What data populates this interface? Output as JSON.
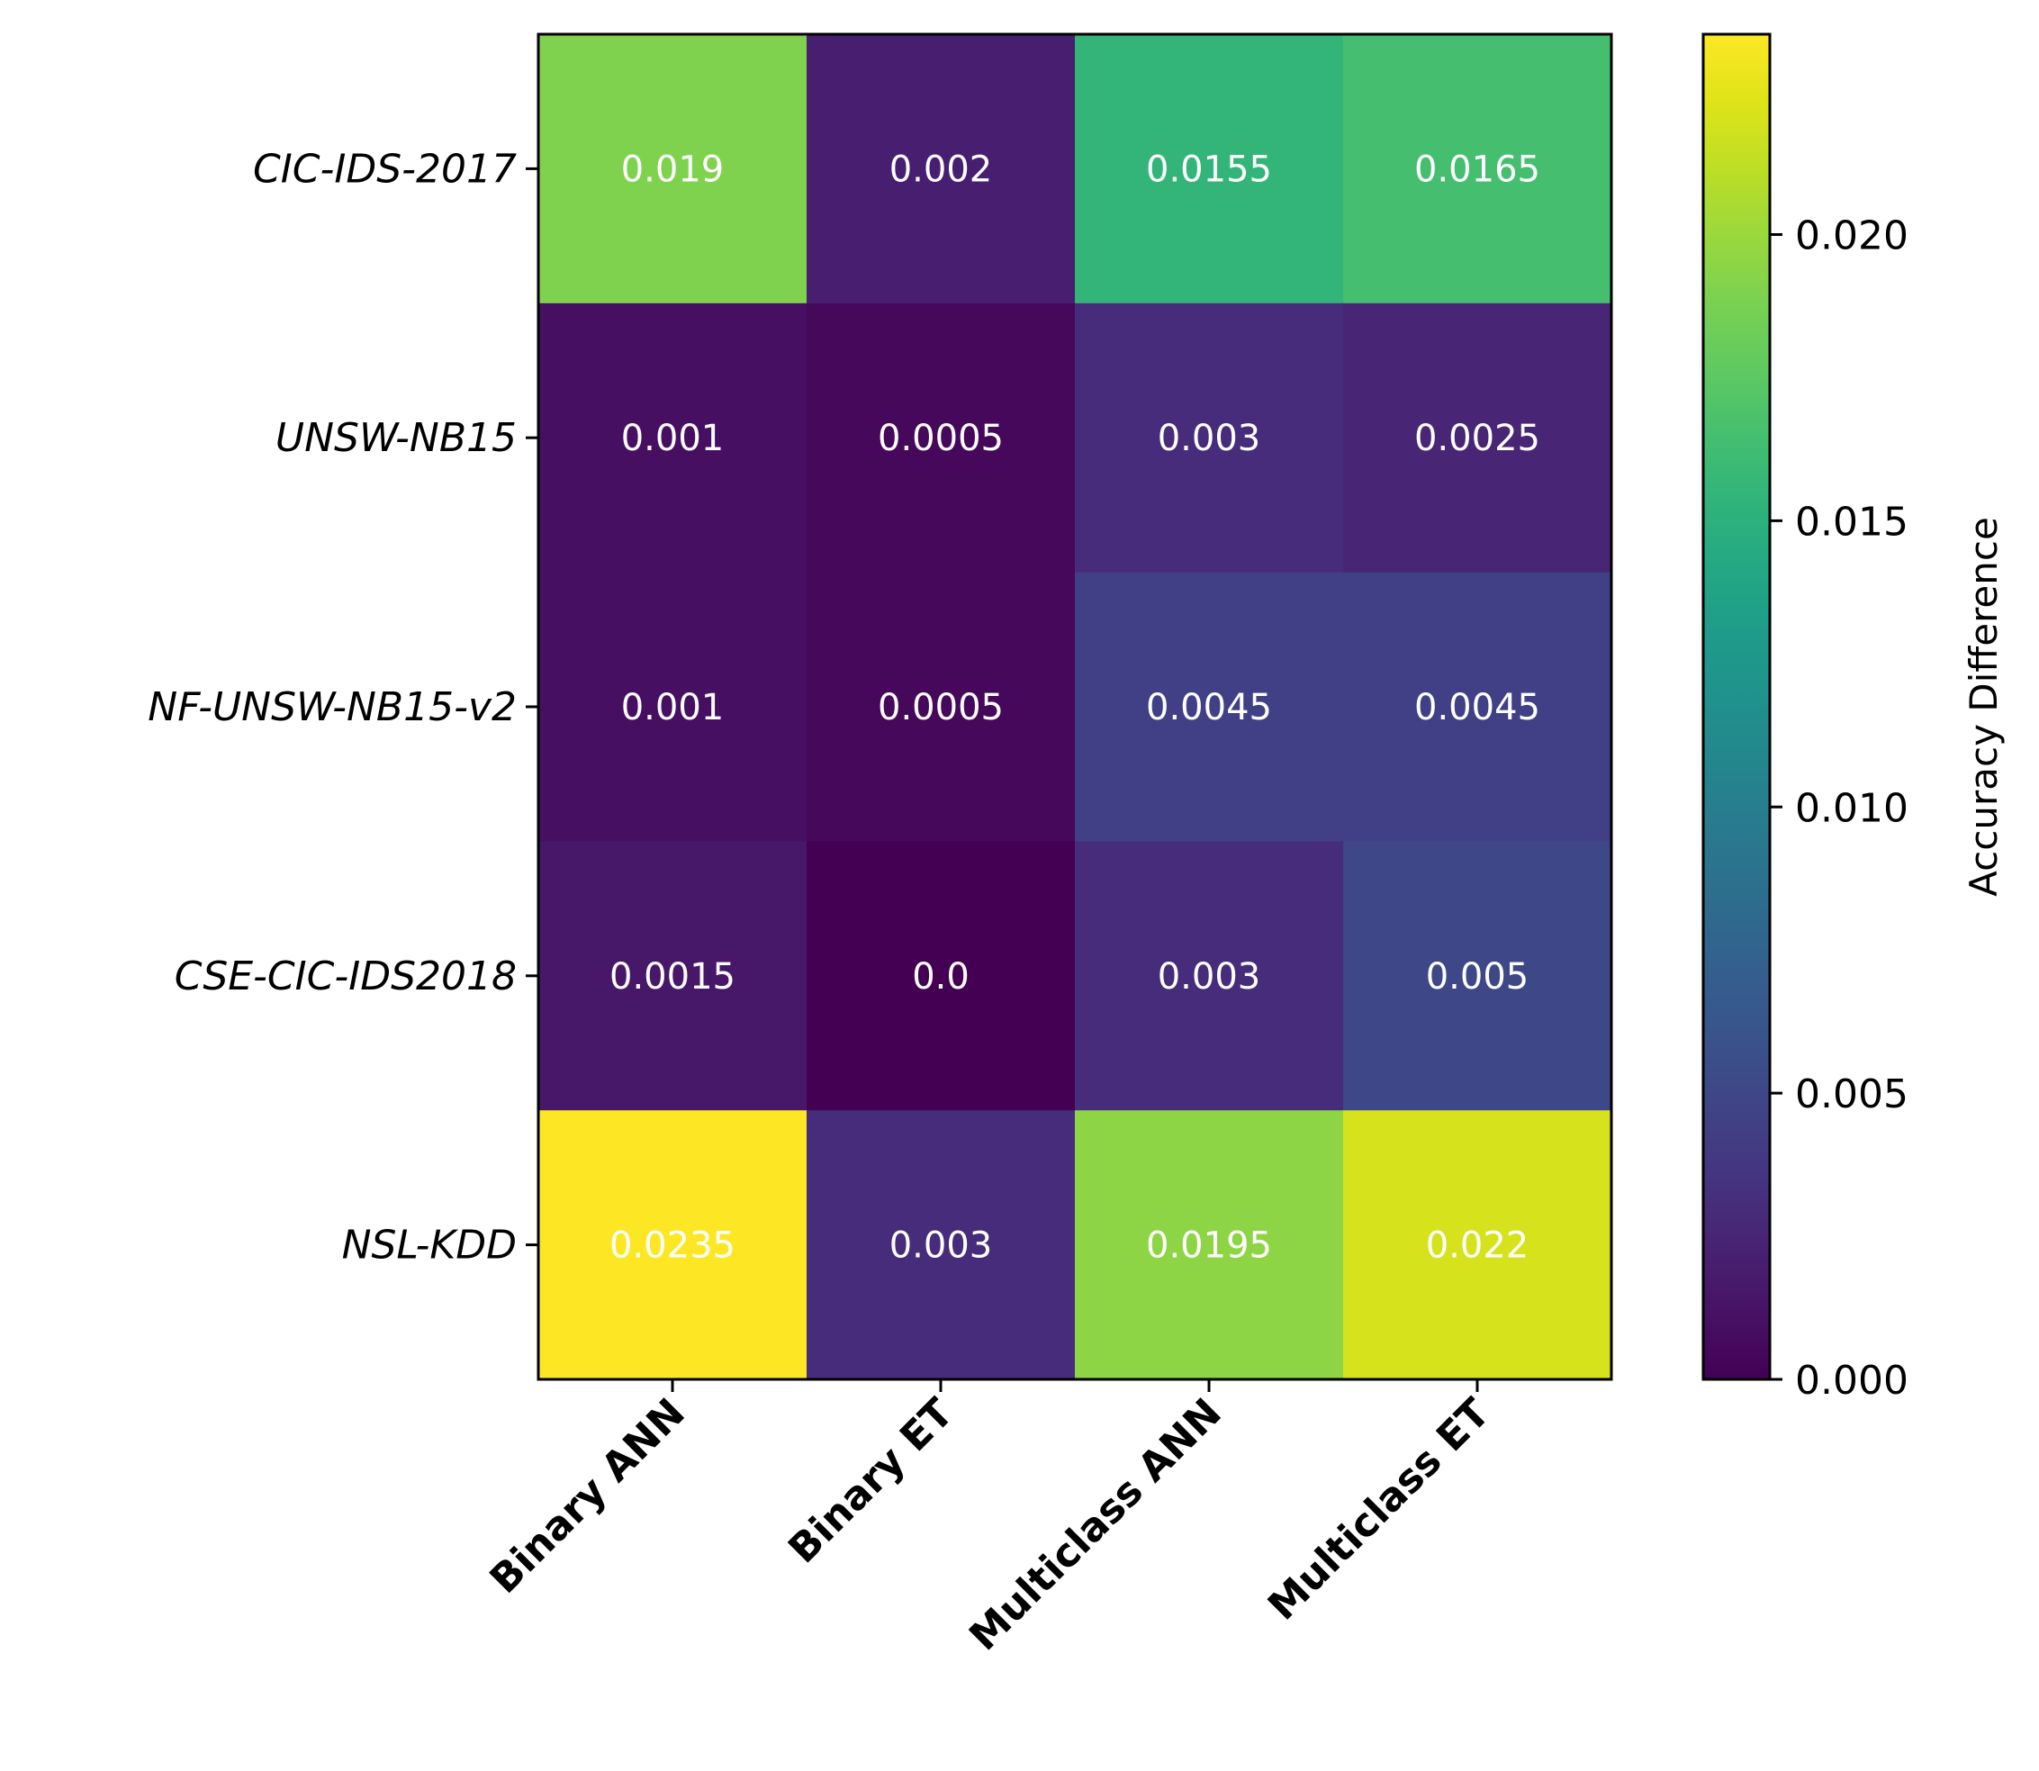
{
  "chart_data": {
    "type": "heatmap",
    "rows": [
      "CIC-IDS-2017",
      "UNSW-NB15",
      "NF-UNSW-NB15-v2",
      "CSE-CIC-IDS2018",
      "NSL-KDD"
    ],
    "columns": [
      "Binary ANN",
      "Binary ET",
      "Multiclass ANN",
      "Multiclass ET"
    ],
    "values": [
      [
        0.019,
        0.002,
        0.0155,
        0.0165
      ],
      [
        0.001,
        0.0005,
        0.003,
        0.0025
      ],
      [
        0.001,
        0.0005,
        0.0045,
        0.0045
      ],
      [
        0.0015,
        0.0,
        0.003,
        0.005
      ],
      [
        0.0235,
        0.003,
        0.0195,
        0.022
      ]
    ],
    "cell_labels": [
      [
        "0.019",
        "0.002",
        "0.0155",
        "0.0165"
      ],
      [
        "0.001",
        "0.0005",
        "0.003",
        "0.0025"
      ],
      [
        "0.001",
        "0.0005",
        "0.0045",
        "0.0045"
      ],
      [
        "0.0015",
        "0.0",
        "0.003",
        "0.005"
      ],
      [
        "0.0235",
        "0.003",
        "0.0195",
        "0.022"
      ]
    ],
    "colormap": "viridis",
    "vmin": 0.0,
    "vmax": 0.0235,
    "colorbar": {
      "label": "Accuracy Difference",
      "ticks": [
        0.0,
        0.005,
        0.01,
        0.015,
        0.02
      ],
      "tick_labels": [
        "0.000",
        "0.005",
        "0.010",
        "0.015",
        "0.020"
      ]
    }
  }
}
